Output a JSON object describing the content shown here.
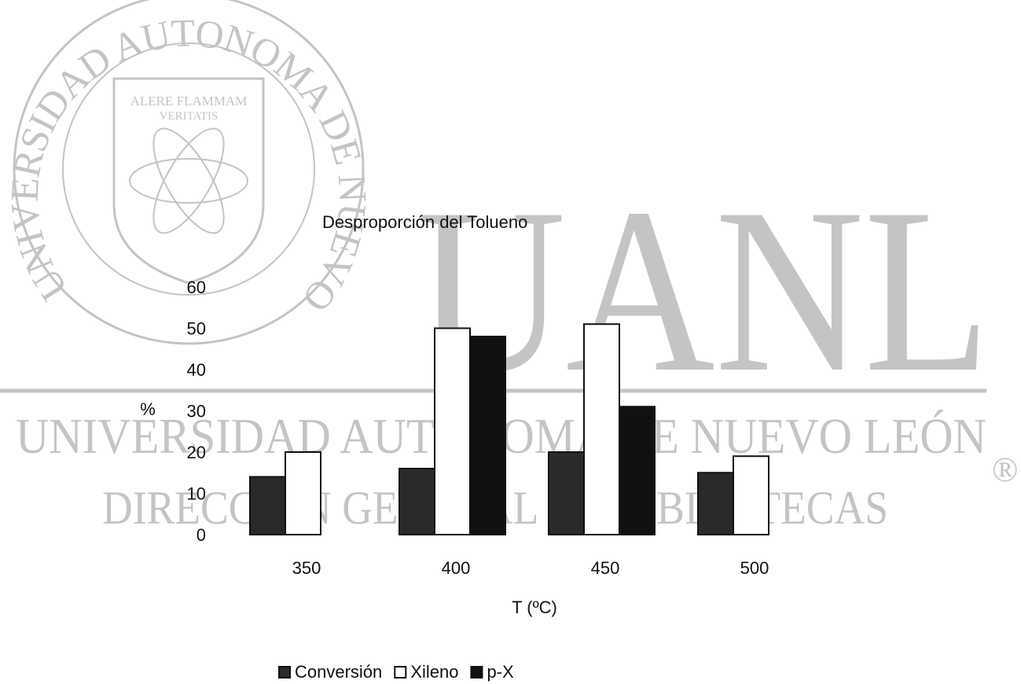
{
  "chart_data": {
    "type": "bar",
    "title": "Desproporción del Tolueno",
    "x_label": "T (ºC)",
    "y_label": "%",
    "categories": [
      "350",
      "400",
      "450",
      "500"
    ],
    "series": [
      {
        "name": "Conversión",
        "color": "#2a2a2a",
        "values": [
          14,
          16,
          20,
          15
        ]
      },
      {
        "name": "Xileno",
        "color": "#ffffff",
        "values": [
          20,
          50,
          51,
          19
        ]
      },
      {
        "name": "p-X",
        "color": "#111111",
        "values": [
          null,
          48,
          31,
          null
        ]
      }
    ],
    "ylim": [
      0,
      60
    ],
    "yticks": [
      0,
      10,
      20,
      30,
      40,
      50,
      60
    ],
    "grid": false,
    "legend": "bottom"
  },
  "watermark": {
    "logo": "UANL",
    "name": "UNIVERSIDAD AUTÓNOMA DE NUEVO LEÓN",
    "department": "DIRECCIÓN GENERAL DE BIBLIOTECAS",
    "seal_text": "UNIVERSIDAD AUTONOMA DE NUEVO LEON",
    "motto_1": "ALERE FLAMMAM",
    "motto_2": "VERITATIS",
    "registered": "®"
  }
}
